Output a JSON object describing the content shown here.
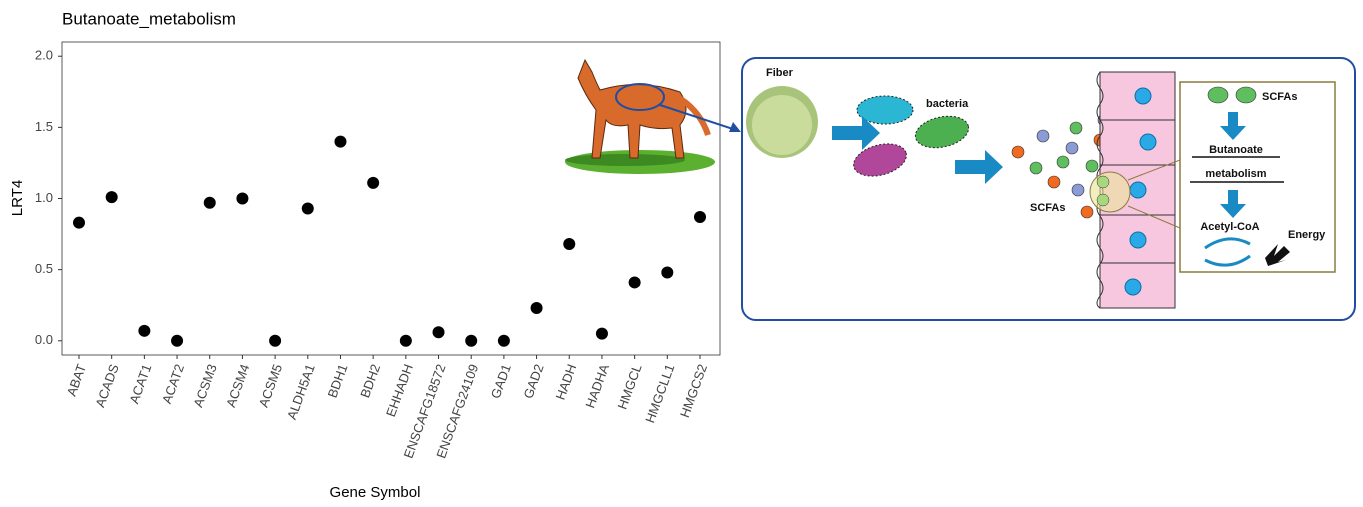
{
  "chart_data": {
    "type": "scatter",
    "title": "Butanoate_metabolism",
    "xlabel": "Gene Symbol",
    "ylabel": "LRT4",
    "categories": [
      "ABAT",
      "ACADS",
      "ACAT1",
      "ACAT2",
      "ACSM3",
      "ACSM4",
      "ACSM5",
      "ALDH5A1",
      "BDH1",
      "BDH2",
      "EHHADH",
      "ENSCAFG18572",
      "ENSCAFG24109",
      "GAD1",
      "GAD2",
      "HADH",
      "HADHA",
      "HMGCL",
      "HMGCLL1",
      "HMGCS2"
    ],
    "values": [
      0.83,
      1.01,
      0.07,
      0.0,
      0.97,
      1.0,
      0.0,
      0.93,
      1.4,
      1.11,
      0.0,
      0.06,
      0.0,
      0.0,
      0.23,
      0.68,
      0.05,
      0.41,
      0.48,
      0.87
    ],
    "color": "#000000",
    "ylim": [
      -0.1,
      2.1
    ],
    "yticks": [
      {
        "value": 0,
        "label": "0.0"
      },
      {
        "value": 0.5,
        "label": "0.5"
      },
      {
        "value": 1,
        "label": "1.0"
      },
      {
        "value": 1.5,
        "label": "1.5"
      },
      {
        "value": 2,
        "label": "2.0"
      }
    ],
    "grid": false
  },
  "diagram": {
    "fiber": "Fiber",
    "bacteria": "bacteria",
    "scfas_left": "SCFAs",
    "scfas_box": "SCFAs",
    "pathway": [
      "Butanoate",
      "metabolism"
    ],
    "acetyl": "Acetyl-CoA",
    "energy": "Energy"
  }
}
